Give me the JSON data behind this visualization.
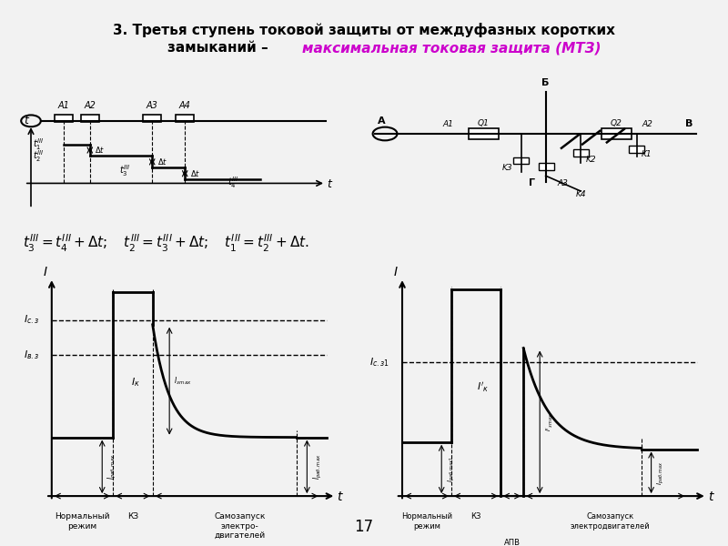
{
  "title_line1": "3. Третья ступень токовой защиты от междуфазных коротких",
  "title_line2_black": "замыканий – ",
  "title_line2_colored": "максимальная токовая защита (МТЗ)",
  "bg_color": "#f2f2f2",
  "page_number": "17"
}
